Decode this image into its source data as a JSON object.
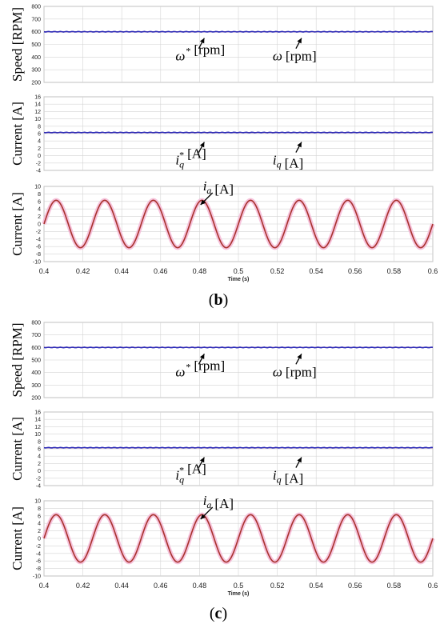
{
  "chart_data": [
    {
      "figure": "b",
      "panel_label_text": "b",
      "xlabel": "Time (s)",
      "x_ticks": [
        "0.4",
        "0.42",
        "0.44",
        "0.46",
        "0.48",
        "0.5",
        "0.52",
        "0.54",
        "0.56",
        "0.58",
        "0.6"
      ],
      "xlim": [
        0.4,
        0.6
      ],
      "subplots": [
        {
          "type": "line",
          "ylabel": "Speed [RPM]",
          "ylim": [
            200,
            800
          ],
          "y_ticks": [
            "800",
            "700",
            "600",
            "500",
            "400",
            "300",
            "200"
          ],
          "series": [
            {
              "name": "ω* [rpm]",
              "kind": "constant",
              "value": 600,
              "color": "#e03a3a"
            },
            {
              "name": "ω [rpm]",
              "kind": "constant",
              "value": 600,
              "color": "#2b2bb8"
            }
          ],
          "annotations": [
            {
              "id": "ref",
              "label": "ω",
              "sup": "*",
              "unit": "[rpm]",
              "x": 0.48
            },
            {
              "id": "meas",
              "label": "ω",
              "sup": "",
              "unit": "[rpm]",
              "x": 0.53
            }
          ]
        },
        {
          "type": "line",
          "ylabel": "Current [A]",
          "ylim": [
            -4,
            16
          ],
          "y_ticks": [
            "16",
            "14",
            "12",
            "10",
            "8",
            "6",
            "4",
            "2",
            "0",
            "-2",
            "-4"
          ],
          "series": [
            {
              "name": "iq* [A]",
              "kind": "constant",
              "value": 6.3,
              "color": "#e03a3a"
            },
            {
              "name": "iq [A]",
              "kind": "constant",
              "value": 6.3,
              "color": "#2b2bb8"
            }
          ],
          "annotations": [
            {
              "id": "ref",
              "label": "i",
              "sub": "q",
              "sup": "*",
              "unit": "[A]",
              "x": 0.48
            },
            {
              "id": "meas",
              "label": "i",
              "sub": "q",
              "sup": "",
              "unit": "[A]",
              "x": 0.53
            }
          ]
        },
        {
          "type": "line",
          "ylabel": "Current [A]",
          "ylim": [
            -10,
            10
          ],
          "y_ticks": [
            "10",
            "8",
            "6",
            "4",
            "2",
            "0",
            "-2",
            "-4",
            "-6",
            "-8",
            "-10"
          ],
          "series": [
            {
              "name": "ia [A]",
              "kind": "sine",
              "amplitude": 6.3,
              "frequency_hz": 40,
              "phase_at_x0": 0,
              "color": "#a8322d",
              "envelope_color": "#f4b8d6"
            }
          ],
          "annotations": [
            {
              "id": "ia",
              "label": "i",
              "sub": "a",
              "sup": "",
              "unit": "[A]",
              "x": 0.49
            }
          ]
        }
      ]
    },
    {
      "figure": "c",
      "panel_label_text": "c",
      "xlabel": "Time (s)",
      "x_ticks": [
        "0.4",
        "0.42",
        "0.44",
        "0.46",
        "0.48",
        "0.5",
        "0.52",
        "0.54",
        "0.56",
        "0.58",
        "0.6"
      ],
      "xlim": [
        0.4,
        0.6
      ],
      "subplots": [
        {
          "type": "line",
          "ylabel": "Speed [RPM]",
          "ylim": [
            200,
            800
          ],
          "y_ticks": [
            "800",
            "700",
            "600",
            "500",
            "400",
            "300",
            "200"
          ],
          "series": [
            {
              "name": "ω* [rpm]",
              "kind": "constant",
              "value": 600,
              "color": "#e03a3a"
            },
            {
              "name": "ω [rpm]",
              "kind": "constant",
              "value": 600,
              "color": "#2b2bb8"
            }
          ],
          "annotations": [
            {
              "id": "ref",
              "label": "ω",
              "sup": "*",
              "unit": "[rpm]",
              "x": 0.48
            },
            {
              "id": "meas",
              "label": "ω",
              "sup": "",
              "unit": "[rpm]",
              "x": 0.53
            }
          ]
        },
        {
          "type": "line",
          "ylabel": "Current [A]",
          "ylim": [
            -4,
            16
          ],
          "y_ticks": [
            "16",
            "14",
            "12",
            "10",
            "8",
            "6",
            "4",
            "2",
            "0",
            "-2",
            "-4"
          ],
          "series": [
            {
              "name": "iq* [A]",
              "kind": "constant",
              "value": 6.3,
              "color": "#e03a3a"
            },
            {
              "name": "iq [A]",
              "kind": "constant",
              "value": 6.3,
              "color": "#2b2bb8"
            }
          ],
          "annotations": [
            {
              "id": "ref",
              "label": "i",
              "sub": "q",
              "sup": "*",
              "unit": "[A]",
              "x": 0.48
            },
            {
              "id": "meas",
              "label": "i",
              "sub": "q",
              "sup": "",
              "unit": "[A]",
              "x": 0.53
            }
          ]
        },
        {
          "type": "line",
          "ylabel": "Current [A]",
          "ylim": [
            -10,
            10
          ],
          "y_ticks": [
            "10",
            "8",
            "6",
            "4",
            "2",
            "0",
            "-2",
            "-4",
            "-6",
            "-8",
            "-10"
          ],
          "series": [
            {
              "name": "ia [A]",
              "kind": "sine",
              "amplitude": 6.3,
              "frequency_hz": 40,
              "phase_at_x0": 0,
              "color": "#a8322d",
              "envelope_color": "#f4b8d6"
            }
          ],
          "annotations": [
            {
              "id": "ia",
              "label": "i",
              "sub": "a",
              "sup": "",
              "unit": "[A]",
              "x": 0.49
            }
          ]
        }
      ]
    }
  ]
}
